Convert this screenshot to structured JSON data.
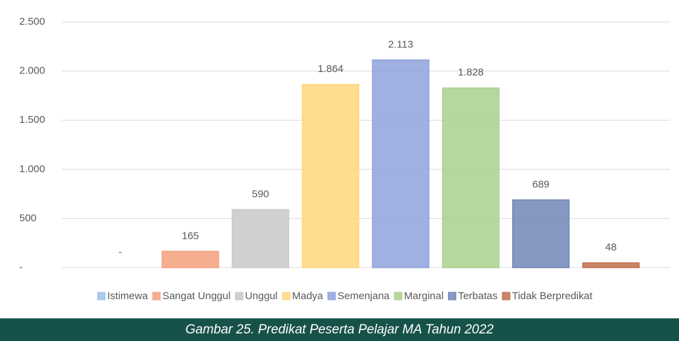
{
  "chart_data": {
    "type": "bar",
    "caption": "Gambar 25. Predikat Peserta Pelajar MA Tahun 2022",
    "categories": [
      "Istimewa",
      "Sangat Unggul",
      "Unggul",
      "Madya",
      "Semenjana",
      "Marginal",
      "Terbatas",
      "Tidak Berpredikat"
    ],
    "values": [
      0,
      165,
      590,
      1864,
      2113,
      1828,
      689,
      48
    ],
    "value_labels": [
      "-",
      "165",
      "590",
      "1.864",
      "2.113",
      "1.828",
      "689",
      "48"
    ],
    "colors": [
      "#9dc3e6",
      "#f4a07e",
      "#c8c8c8",
      "#ffd77a",
      "#8ea2dc",
      "#a9d18e",
      "#6f86b6",
      "#c0704e"
    ],
    "ylim": [
      0,
      2500
    ],
    "yticks": [
      {
        "value": 0,
        "label": "-"
      },
      500,
      {
        "value": 1000,
        "label": "1.000"
      },
      {
        "value": 1500,
        "label": "1.500"
      },
      {
        "value": 2000,
        "label": "2.000"
      },
      {
        "value": 2500,
        "label": "2.500"
      }
    ],
    "grid": true,
    "legend": "bottom"
  }
}
